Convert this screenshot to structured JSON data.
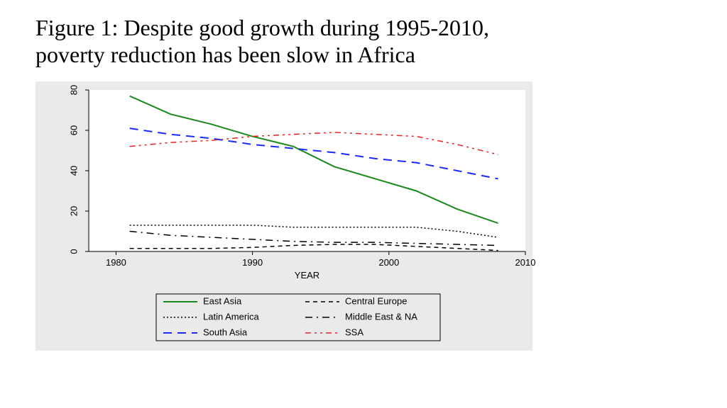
{
  "title": "Figure 1: Despite good growth during 1995-2010, poverty reduction has been slow in Africa",
  "chart": {
    "type": "line",
    "background_color": "#eaeaea",
    "plot_background_color": "#ffffff",
    "axis_color": "#000000",
    "x": {
      "label": "YEAR",
      "min": 1978,
      "max": 2010,
      "ticks": [
        1980,
        1990,
        2000,
        2010
      ],
      "label_fontsize": 13
    },
    "y": {
      "min": 0,
      "max": 80,
      "ticks": [
        0,
        20,
        40,
        60,
        80
      ],
      "rotated_labels": true,
      "label_fontsize": 13
    },
    "series": [
      {
        "name": "East Asia",
        "color": "#1a8a1a",
        "dash": "solid",
        "width": 2,
        "points": [
          [
            1981,
            77
          ],
          [
            1984,
            68
          ],
          [
            1987,
            63
          ],
          [
            1990,
            57
          ],
          [
            1993,
            52
          ],
          [
            1996,
            42
          ],
          [
            1999,
            36
          ],
          [
            2002,
            30
          ],
          [
            2005,
            21
          ],
          [
            2008,
            14
          ]
        ]
      },
      {
        "name": "Latin America",
        "color": "#000000",
        "dash": "dot",
        "width": 1.5,
        "points": [
          [
            1981,
            13
          ],
          [
            1984,
            13
          ],
          [
            1987,
            13
          ],
          [
            1990,
            13
          ],
          [
            1993,
            12
          ],
          [
            1996,
            12
          ],
          [
            1999,
            12
          ],
          [
            2002,
            12
          ],
          [
            2005,
            10
          ],
          [
            2008,
            7
          ]
        ]
      },
      {
        "name": "South Asia",
        "color": "#1a2aff",
        "dash": "long-dash",
        "width": 2,
        "points": [
          [
            1981,
            61
          ],
          [
            1984,
            58
          ],
          [
            1987,
            56
          ],
          [
            1990,
            53
          ],
          [
            1993,
            51
          ],
          [
            1996,
            49
          ],
          [
            1999,
            46
          ],
          [
            2002,
            44
          ],
          [
            2005,
            40
          ],
          [
            2008,
            36
          ]
        ]
      },
      {
        "name": "Central Europe",
        "color": "#000000",
        "dash": "short-dash",
        "width": 1.5,
        "points": [
          [
            1981,
            1.5
          ],
          [
            1984,
            1.5
          ],
          [
            1987,
            1.5
          ],
          [
            1990,
            2
          ],
          [
            1993,
            3
          ],
          [
            1996,
            3.5
          ],
          [
            1999,
            3.5
          ],
          [
            2002,
            2.5
          ],
          [
            2005,
            1.5
          ],
          [
            2008,
            0.5
          ]
        ]
      },
      {
        "name": "Middle East & NA",
        "color": "#000000",
        "dash": "dash-dot",
        "width": 1.5,
        "points": [
          [
            1981,
            10
          ],
          [
            1984,
            8
          ],
          [
            1987,
            7
          ],
          [
            1990,
            6
          ],
          [
            1993,
            5
          ],
          [
            1996,
            4.5
          ],
          [
            1999,
            4.5
          ],
          [
            2002,
            4
          ],
          [
            2005,
            3.5
          ],
          [
            2008,
            3
          ]
        ]
      },
      {
        "name": "SSA",
        "color": "#ee2222",
        "dash": "dash-dot-dot",
        "width": 1.5,
        "points": [
          [
            1981,
            52
          ],
          [
            1984,
            54
          ],
          [
            1987,
            55
          ],
          [
            1990,
            57
          ],
          [
            1993,
            58
          ],
          [
            1996,
            59
          ],
          [
            1999,
            58
          ],
          [
            2002,
            57
          ],
          [
            2005,
            53
          ],
          [
            2008,
            48
          ]
        ]
      }
    ],
    "legend": {
      "border_color": "#000000",
      "background": "#eaeaea",
      "columns": 2,
      "rows": 3,
      "items_order": [
        "East Asia",
        "Central Europe",
        "Latin America",
        "Middle East & NA",
        "South Asia",
        "SSA"
      ]
    }
  }
}
